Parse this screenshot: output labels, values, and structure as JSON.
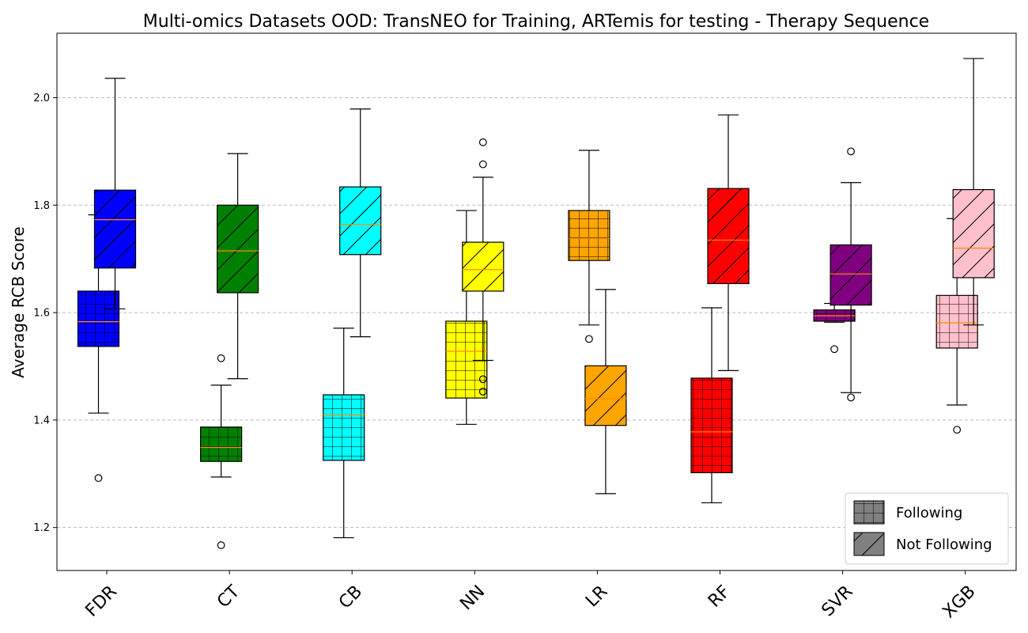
{
  "chart_data": {
    "type": "box",
    "title": "Multi-omics Datasets OOD: TransNEO for Training, ARTemis for testing - Therapy Sequence",
    "xlabel": "",
    "ylabel": "Average RCB Score",
    "ylim": [
      1.12,
      2.12
    ],
    "yticks": [
      1.2,
      1.4,
      1.6,
      1.8,
      2.0
    ],
    "ytick_labels": [
      "1.2",
      "1.4",
      "1.6",
      "1.8",
      "2.0"
    ],
    "grid": "horizontal dashed",
    "legend_position": "bottom-right",
    "categories": [
      "FDR",
      "CT",
      "CB",
      "NN",
      "LR",
      "RF",
      "SVR",
      "XGB"
    ],
    "colors": [
      "#0000ff",
      "#008000",
      "#00ffff",
      "#ffff00",
      "#ffa500",
      "#ff0000",
      "#800080",
      "#ffc0cb"
    ],
    "median_color": "#ff8c00",
    "series": [
      {
        "name": "Following",
        "hatch": "grid",
        "boxes": [
          {
            "whislo": 1.413,
            "q1": 1.537,
            "med": 1.583,
            "q3": 1.64,
            "whishi": 1.782,
            "fliers": [
              1.292
            ]
          },
          {
            "whislo": 1.294,
            "q1": 1.323,
            "med": 1.349,
            "q3": 1.387,
            "whishi": 1.465,
            "fliers": [
              1.515,
              1.167
            ]
          },
          {
            "whislo": 1.181,
            "q1": 1.325,
            "med": 1.41,
            "q3": 1.447,
            "whishi": 1.571,
            "fliers": []
          },
          {
            "whislo": 1.392,
            "q1": 1.441,
            "med": 1.528,
            "q3": 1.584,
            "whishi": 1.79,
            "fliers": []
          },
          {
            "whislo": 1.577,
            "q1": 1.697,
            "med": 1.738,
            "q3": 1.79,
            "whishi": 1.902,
            "fliers": [
              1.551
            ]
          },
          {
            "whislo": 1.246,
            "q1": 1.302,
            "med": 1.378,
            "q3": 1.478,
            "whishi": 1.609,
            "fliers": []
          },
          {
            "whislo": 1.582,
            "q1": 1.584,
            "med": 1.594,
            "q3": 1.605,
            "whishi": 1.617,
            "fliers": [
              1.532
            ]
          },
          {
            "whislo": 1.428,
            "q1": 1.534,
            "med": 1.581,
            "q3": 1.632,
            "whishi": 1.775,
            "fliers": [
              1.382
            ]
          }
        ]
      },
      {
        "name": "Not Following",
        "hatch": "diagonal",
        "boxes": [
          {
            "whislo": 1.607,
            "q1": 1.683,
            "med": 1.773,
            "q3": 1.828,
            "whishi": 2.036,
            "fliers": []
          },
          {
            "whislo": 1.477,
            "q1": 1.637,
            "med": 1.715,
            "q3": 1.8,
            "whishi": 1.896,
            "fliers": []
          },
          {
            "whislo": 1.555,
            "q1": 1.708,
            "med": 1.764,
            "q3": 1.834,
            "whishi": 1.979,
            "fliers": []
          },
          {
            "whislo": 1.511,
            "q1": 1.64,
            "med": 1.68,
            "q3": 1.731,
            "whishi": 1.852,
            "fliers": [
              1.917,
              1.876,
              1.476,
              1.453
            ]
          },
          {
            "whislo": 1.263,
            "q1": 1.39,
            "med": 1.44,
            "q3": 1.501,
            "whishi": 1.643,
            "fliers": []
          },
          {
            "whislo": 1.492,
            "q1": 1.654,
            "med": 1.735,
            "q3": 1.831,
            "whishi": 1.968,
            "fliers": []
          },
          {
            "whislo": 1.451,
            "q1": 1.614,
            "med": 1.672,
            "q3": 1.726,
            "whishi": 1.842,
            "fliers": [
              1.9,
              1.442
            ]
          },
          {
            "whislo": 1.577,
            "q1": 1.665,
            "med": 1.72,
            "q3": 1.829,
            "whishi": 2.073,
            "fliers": []
          }
        ]
      }
    ]
  }
}
